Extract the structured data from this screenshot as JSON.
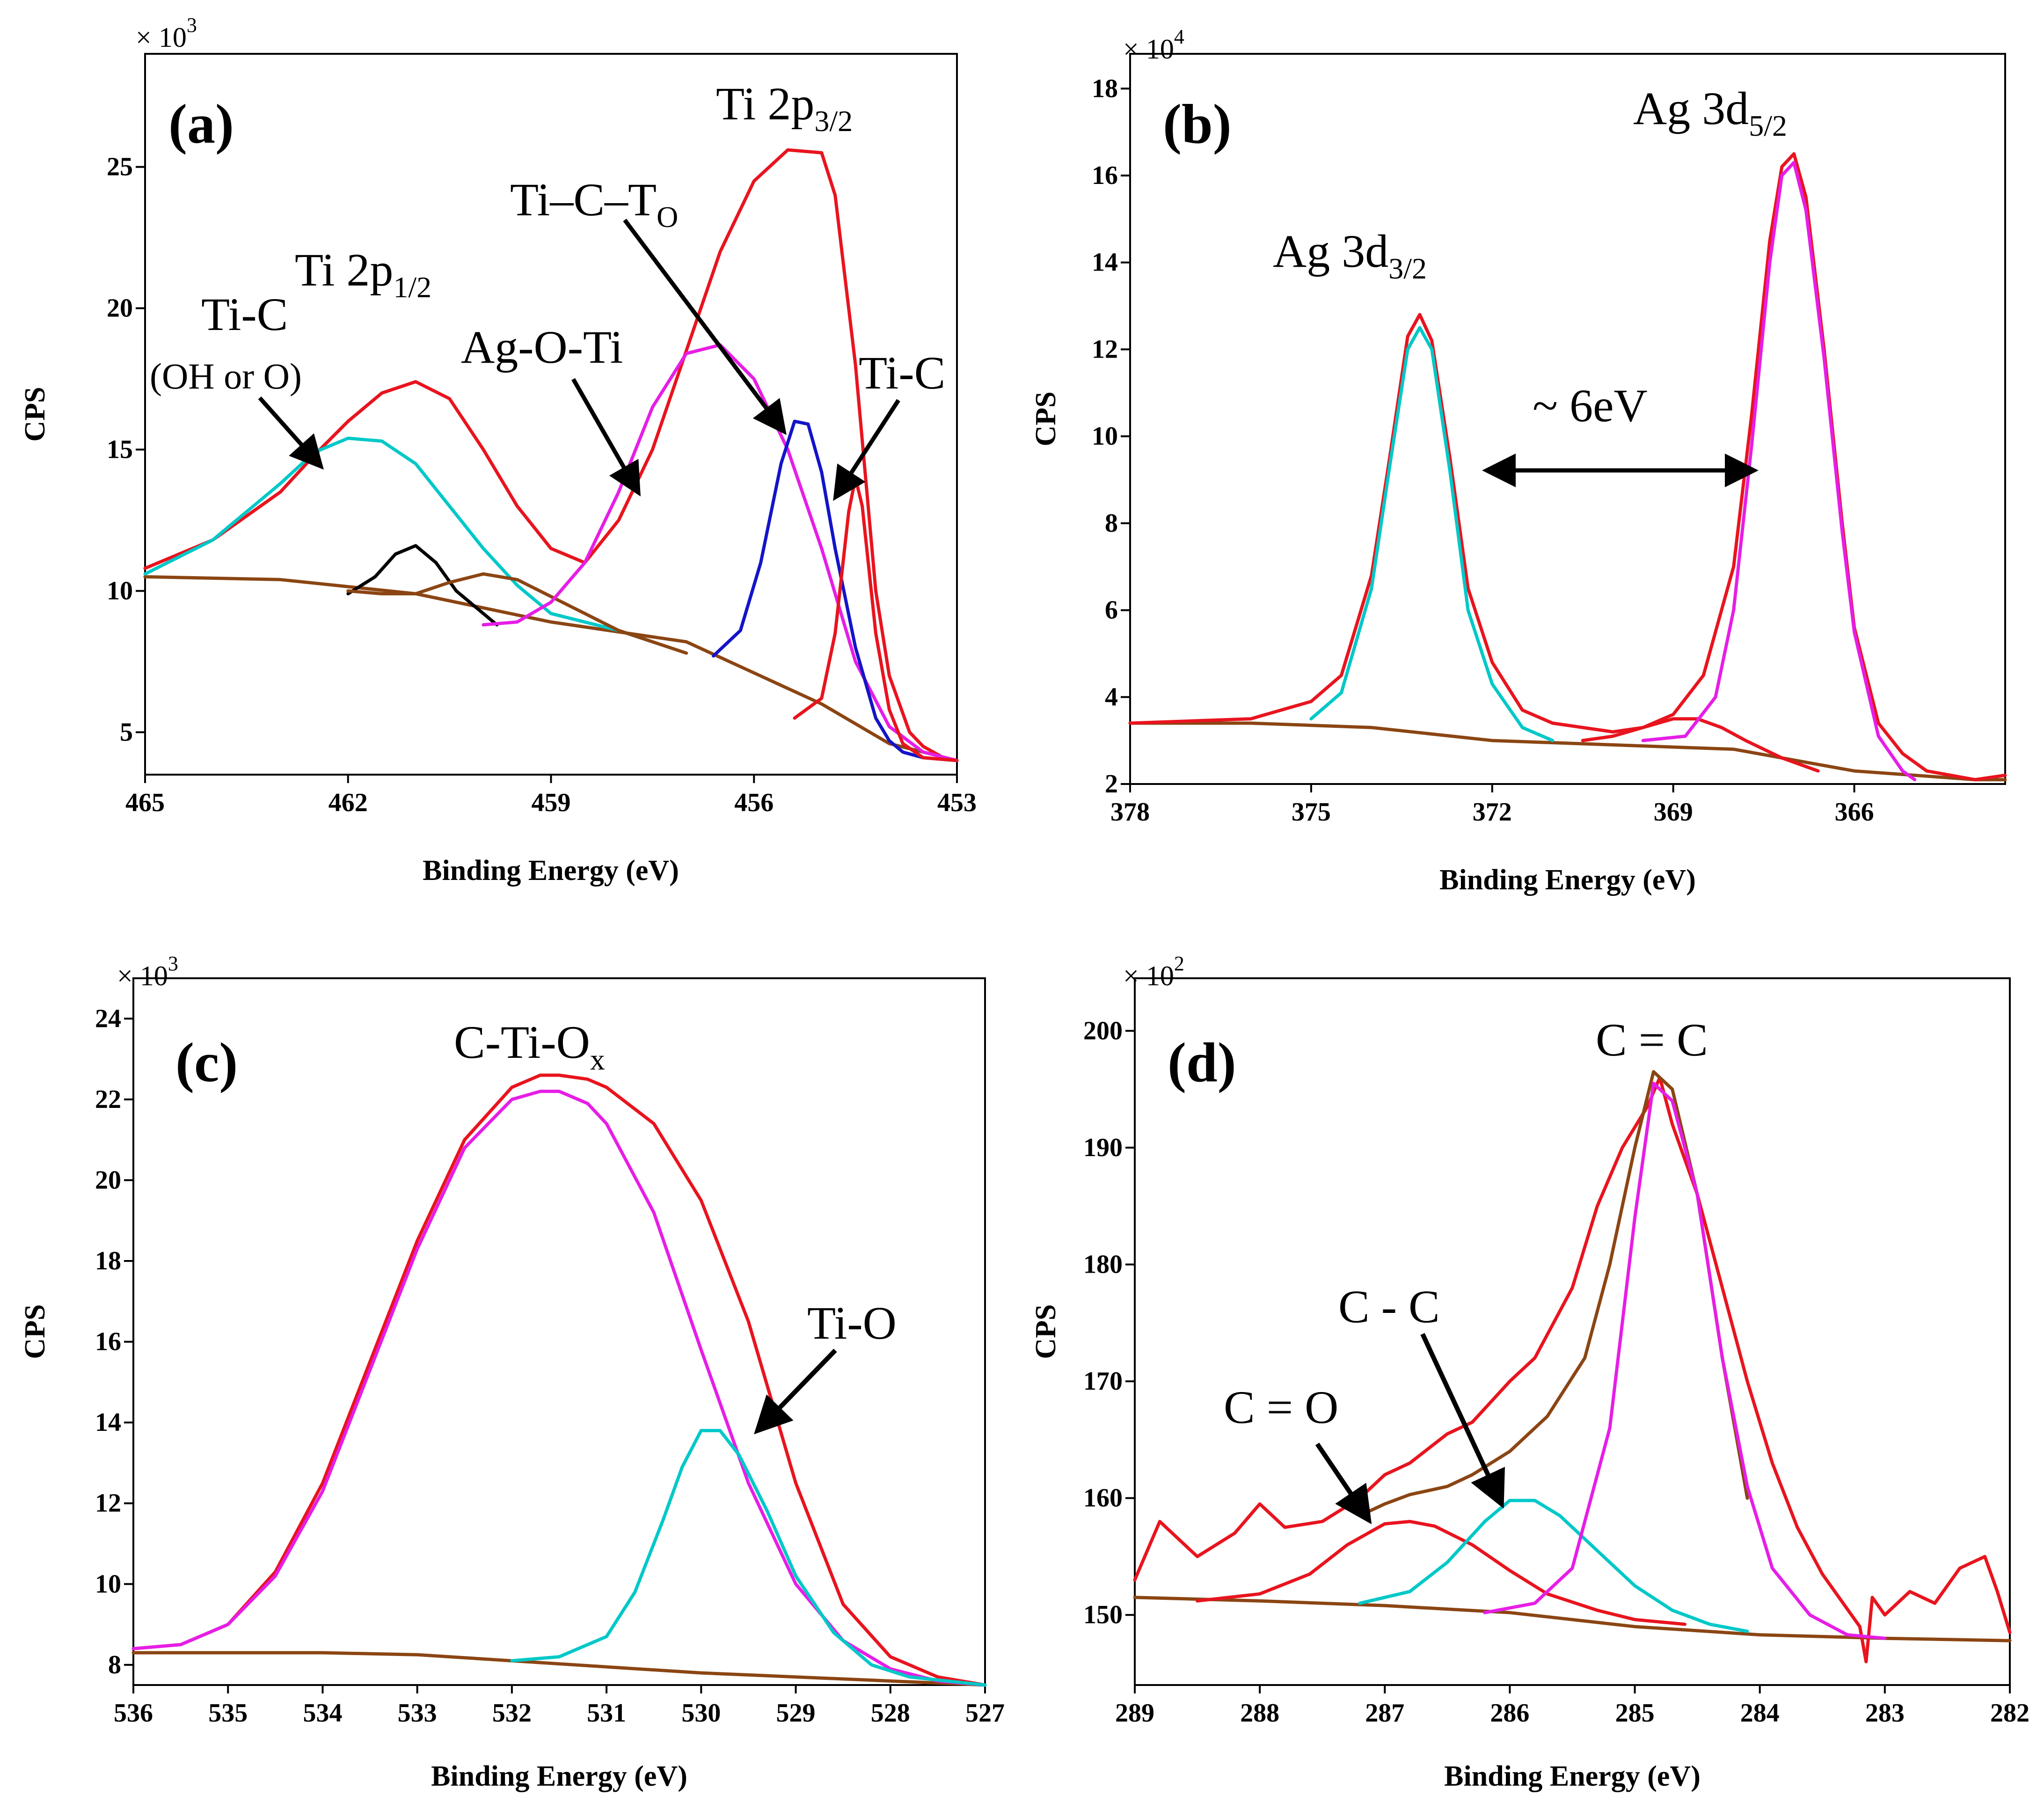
{
  "chart_data": [
    {
      "type": "line",
      "panel_label": "(a)",
      "xlabel": "Binding Energy (eV)",
      "ylabel": "CPS",
      "multiplier": "× 10",
      "multiplier_exp": "3",
      "xlim": [
        465,
        453
      ],
      "ylim": [
        3.5,
        29
      ],
      "x_ticks": [
        465,
        462,
        459,
        456,
        453
      ],
      "y_ticks": [
        5,
        10,
        15,
        20,
        25
      ],
      "annotations": [
        {
          "text": "Ti 2p",
          "sub": "3/2"
        },
        {
          "text": "Ti–C–T",
          "sub": "O"
        },
        {
          "text": "Ti-C"
        },
        {
          "text": "Ag-O-Ti"
        },
        {
          "text": "Ti 2p",
          "sub": "1/2"
        },
        {
          "text": "Ti-C"
        },
        {
          "text": "(OH or O)"
        }
      ],
      "background": {
        "color": "#8b4513",
        "x": [
          465,
          463,
          461,
          459,
          457,
          455,
          454,
          453
        ],
        "y": [
          10.5,
          10.4,
          9.9,
          8.9,
          8.2,
          6.0,
          4.6,
          4.0
        ]
      },
      "series": [
        {
          "color": "#e8141e",
          "x": [
            465,
            464,
            463,
            462.5,
            462,
            461.5,
            461,
            460.5,
            460,
            459.5,
            459,
            458.5,
            458,
            457.5,
            457,
            456.5,
            456,
            455.5,
            455,
            454.8,
            454.5,
            454.2,
            454,
            453.7,
            453.5,
            453.2,
            453
          ],
          "y": [
            10.8,
            11.8,
            13.5,
            14.8,
            16.0,
            17.0,
            17.4,
            16.8,
            15.0,
            13.0,
            11.5,
            11.0,
            12.5,
            15.0,
            18.5,
            22.0,
            24.5,
            25.6,
            25.5,
            24.0,
            18.0,
            10.0,
            7.0,
            5.0,
            4.5,
            4.1,
            4.0
          ]
        },
        {
          "color": "#00c8c8",
          "x": [
            465,
            464,
            463,
            462.5,
            462,
            461.5,
            461,
            460.5,
            460,
            459.5,
            459,
            458,
            457.5
          ],
          "y": [
            10.6,
            11.8,
            13.8,
            14.9,
            15.4,
            15.3,
            14.5,
            13.0,
            11.5,
            10.2,
            9.2,
            8.6,
            8.2
          ]
        },
        {
          "color": "#000000",
          "x": [
            462,
            461.6,
            461.3,
            461,
            460.7,
            460.4,
            460,
            459.8
          ],
          "y": [
            9.9,
            10.5,
            11.3,
            11.6,
            11.0,
            10.0,
            9.2,
            8.8
          ]
        },
        {
          "color": "#8b4513",
          "x": [
            462,
            461.5,
            461,
            460.5,
            460,
            459.5,
            459,
            458.5,
            458,
            457.5,
            457
          ],
          "y": [
            10.0,
            9.9,
            9.9,
            10.3,
            10.6,
            10.4,
            9.8,
            9.2,
            8.6,
            8.2,
            7.8
          ]
        },
        {
          "color": "#e61ee6",
          "x": [
            460,
            459.5,
            459,
            458.5,
            458,
            457.5,
            457,
            456.5,
            456,
            455.5,
            455,
            454.5,
            454,
            453.5,
            453
          ],
          "y": [
            8.8,
            8.9,
            9.6,
            11.0,
            13.5,
            16.5,
            18.4,
            18.7,
            17.5,
            15.0,
            11.5,
            7.5,
            5.2,
            4.3,
            4.0
          ]
        },
        {
          "color": "#1414c8",
          "x": [
            456.6,
            456.2,
            455.9,
            455.6,
            455.4,
            455.2,
            455.0,
            454.8,
            454.5,
            454.2,
            454.0,
            453.8,
            453.5,
            453
          ],
          "y": [
            7.7,
            8.6,
            11.0,
            14.5,
            16.0,
            15.9,
            14.2,
            11.5,
            8.0,
            5.5,
            4.7,
            4.3,
            4.1,
            4.0
          ]
        },
        {
          "color": "#e8141e",
          "x": [
            455.4,
            455.0,
            454.8,
            454.6,
            454.5,
            454.4,
            454.2,
            454.0,
            453.8,
            453.5,
            453
          ],
          "y": [
            5.5,
            6.2,
            8.5,
            12.8,
            14.0,
            13.0,
            8.5,
            5.8,
            4.6,
            4.1,
            4.0
          ]
        }
      ]
    },
    {
      "type": "line",
      "panel_label": "(b)",
      "xlabel": "Binding Energy (eV)",
      "ylabel": "CPS",
      "multiplier": "× 10",
      "multiplier_exp": "4",
      "xlim": [
        378,
        363.5
      ],
      "ylim": [
        2,
        18.8
      ],
      "x_ticks": [
        378,
        375,
        372,
        369,
        366
      ],
      "y_ticks": [
        2,
        4,
        6,
        8,
        10,
        12,
        14,
        16,
        18
      ],
      "annotations": [
        {
          "text": "Ag 3d",
          "sub": "5/2"
        },
        {
          "text": "Ag 3d",
          "sub": "3/2"
        },
        {
          "text": "~ 6eV"
        }
      ],
      "background": {
        "color": "#8b4513",
        "x": [
          378,
          376,
          374,
          372,
          370,
          368,
          366,
          364,
          363.5
        ],
        "y": [
          3.4,
          3.4,
          3.3,
          3.0,
          2.9,
          2.8,
          2.3,
          2.1,
          2.1
        ]
      },
      "series": [
        {
          "color": "#e8141e",
          "x": [
            378,
            376,
            375,
            374.5,
            374,
            373.7,
            373.4,
            373.2,
            373.0,
            372.7,
            372.4,
            372.0,
            371.5,
            371,
            370,
            369.5,
            369,
            368.5,
            368,
            367.7,
            367.4,
            367.2,
            367.0,
            366.8,
            366.5,
            366.2,
            366.0,
            365.6,
            365.2,
            364.8,
            364,
            363.5
          ],
          "y": [
            3.4,
            3.5,
            3.9,
            4.5,
            6.8,
            9.5,
            12.3,
            12.8,
            12.2,
            9.5,
            6.5,
            4.8,
            3.7,
            3.4,
            3.2,
            3.3,
            3.6,
            4.5,
            7.0,
            10.5,
            14.5,
            16.2,
            16.5,
            15.5,
            12.0,
            8.0,
            5.6,
            3.4,
            2.7,
            2.3,
            2.1,
            2.2
          ]
        },
        {
          "color": "#00c8c8",
          "x": [
            375,
            374.5,
            374,
            373.7,
            373.4,
            373.2,
            373.0,
            372.7,
            372.4,
            372.0,
            371.5,
            371
          ],
          "y": [
            3.5,
            4.1,
            6.5,
            9.3,
            12.0,
            12.5,
            12.0,
            9.2,
            6.0,
            4.3,
            3.3,
            3.0
          ]
        },
        {
          "color": "#e8141e",
          "x": [
            370.5,
            370,
            369.5,
            369.0,
            368.6,
            368.2,
            367.8,
            367.2,
            366.6
          ],
          "y": [
            3.0,
            3.1,
            3.3,
            3.5,
            3.5,
            3.3,
            3.0,
            2.6,
            2.3
          ]
        },
        {
          "color": "#e61ee6",
          "x": [
            369.5,
            368.8,
            368.3,
            368,
            367.7,
            367.4,
            367.2,
            367.0,
            366.8,
            366.5,
            366.2,
            366.0,
            365.6,
            365.2,
            365.0
          ],
          "y": [
            3.0,
            3.1,
            4.0,
            6.0,
            9.8,
            14.0,
            16.0,
            16.3,
            15.2,
            11.8,
            7.8,
            5.5,
            3.1,
            2.3,
            2.1
          ]
        }
      ]
    },
    {
      "type": "line",
      "panel_label": "(c)",
      "xlabel": "Binding Energy (eV)",
      "ylabel": "CPS",
      "multiplier": "× 10",
      "multiplier_exp": "3",
      "xlim": [
        536,
        527
      ],
      "ylim": [
        7.5,
        25
      ],
      "x_ticks": [
        536,
        535,
        534,
        533,
        532,
        531,
        530,
        529,
        528,
        527
      ],
      "y_ticks": [
        8,
        10,
        12,
        14,
        16,
        18,
        20,
        22,
        24
      ],
      "annotations": [
        {
          "text": "C-Ti-O",
          "sub": "x"
        },
        {
          "text": "Ti-O"
        }
      ],
      "background": {
        "color": "#8b4513",
        "x": [
          536,
          535,
          534,
          533,
          532,
          531,
          530,
          529,
          528,
          527
        ],
        "y": [
          8.3,
          8.3,
          8.3,
          8.25,
          8.1,
          7.95,
          7.8,
          7.7,
          7.6,
          7.5
        ]
      },
      "series": [
        {
          "color": "#e8141e",
          "x": [
            536,
            535.5,
            535,
            534.5,
            534,
            533.5,
            533,
            532.5,
            532,
            531.7,
            531.5,
            531.2,
            531,
            530.5,
            530,
            529.5,
            529,
            528.5,
            528,
            527.5,
            527
          ],
          "y": [
            8.4,
            8.5,
            9.0,
            10.3,
            12.5,
            15.5,
            18.5,
            21.0,
            22.3,
            22.6,
            22.6,
            22.5,
            22.3,
            21.4,
            19.5,
            16.5,
            12.5,
            9.5,
            8.2,
            7.7,
            7.5
          ]
        },
        {
          "color": "#e61ee6",
          "x": [
            536,
            535.5,
            535,
            534.5,
            534,
            533.5,
            533,
            532.5,
            532,
            531.7,
            531.5,
            531.2,
            531,
            530.5,
            530,
            529.5,
            529,
            528.5,
            528,
            527.5,
            527
          ],
          "y": [
            8.4,
            8.5,
            9.0,
            10.2,
            12.3,
            15.3,
            18.3,
            20.8,
            22.0,
            22.2,
            22.2,
            21.9,
            21.4,
            19.2,
            15.8,
            12.5,
            10.0,
            8.6,
            7.9,
            7.6,
            7.5
          ]
        },
        {
          "color": "#00c8c8",
          "x": [
            532,
            531.5,
            531,
            530.7,
            530.4,
            530.2,
            530,
            529.8,
            529.6,
            529.3,
            529,
            528.6,
            528.2,
            527.8,
            527.4,
            527
          ],
          "y": [
            8.1,
            8.2,
            8.7,
            9.8,
            11.6,
            12.9,
            13.8,
            13.8,
            13.2,
            11.8,
            10.2,
            8.8,
            8.0,
            7.7,
            7.6,
            7.5
          ]
        }
      ]
    },
    {
      "type": "line",
      "panel_label": "(d)",
      "xlabel": "Binding Energy (eV)",
      "ylabel": "CPS",
      "multiplier": "× 10",
      "multiplier_exp": "2",
      "xlim": [
        289,
        282
      ],
      "ylim": [
        144,
        204.5
      ],
      "x_ticks": [
        289,
        288,
        287,
        286,
        285,
        284,
        283,
        282
      ],
      "y_ticks": [
        150,
        160,
        170,
        180,
        190,
        200
      ],
      "annotations": [
        {
          "text": "C = C"
        },
        {
          "text": "C - C"
        },
        {
          "text": "C = O"
        }
      ],
      "background": {
        "color": "#8b4513",
        "x": [
          289,
          288,
          287,
          286,
          285,
          284,
          283,
          282
        ],
        "y": [
          151.5,
          151.2,
          150.8,
          150.2,
          149.0,
          148.3,
          148.0,
          147.8
        ]
      },
      "series": [
        {
          "color": "#e8141e",
          "x": [
            289,
            288.8,
            288.5,
            288.2,
            288,
            287.8,
            287.5,
            287.2,
            287,
            286.8,
            286.5,
            286.3,
            286,
            285.8,
            285.5,
            285.3,
            285.1,
            284.9,
            284.8,
            284.7,
            284.5,
            284.3,
            284.1,
            283.9,
            283.7,
            283.5,
            283.3,
            283.2,
            283.15,
            283.1,
            283.0,
            282.8,
            282.6,
            282.4,
            282.2,
            282.1,
            282
          ],
          "y": [
            153.0,
            158.0,
            155.0,
            157.0,
            159.5,
            157.5,
            158.0,
            160.0,
            162.0,
            163.0,
            165.5,
            166.5,
            170.0,
            172.0,
            178.0,
            185.0,
            190.0,
            193.5,
            196.0,
            192.0,
            186.0,
            178.0,
            170.0,
            163.0,
            157.5,
            153.5,
            150.5,
            149.0,
            146.0,
            151.5,
            150.0,
            152.0,
            151.0,
            154.0,
            155.0,
            152.0,
            148.5
          ]
        },
        {
          "color": "#8b4513",
          "x": [
            287.2,
            287,
            286.8,
            286.5,
            286.3,
            286.0,
            285.7,
            285.4,
            285.2,
            285.0,
            284.85,
            284.7,
            284.5,
            284.3,
            284.1
          ],
          "y": [
            158.5,
            159.5,
            160.3,
            161.0,
            162.0,
            164.0,
            167.0,
            172.0,
            180.0,
            190.0,
            196.5,
            195.0,
            186.0,
            172.0,
            160.0
          ]
        },
        {
          "color": "#e8141e",
          "x": [
            288.5,
            288,
            287.6,
            287.3,
            287.0,
            286.8,
            286.6,
            286.3,
            286.0,
            285.7,
            285.3,
            285.0,
            284.6
          ],
          "y": [
            151.2,
            151.8,
            153.5,
            156.0,
            157.8,
            158.0,
            157.6,
            156.0,
            153.8,
            151.8,
            150.4,
            149.6,
            149.2
          ]
        },
        {
          "color": "#00c8c8",
          "x": [
            287.2,
            286.8,
            286.5,
            286.2,
            286.0,
            285.8,
            285.6,
            285.3,
            285.0,
            284.7,
            284.4,
            284.1
          ],
          "y": [
            151.0,
            152.0,
            154.5,
            158.0,
            159.8,
            159.8,
            158.5,
            155.5,
            152.5,
            150.4,
            149.2,
            148.6
          ]
        },
        {
          "color": "#e61ee6",
          "x": [
            286.2,
            285.8,
            285.5,
            285.2,
            285.0,
            284.85,
            284.7,
            284.5,
            284.3,
            284.1,
            283.9,
            283.6,
            283.3,
            283.0
          ],
          "y": [
            150.2,
            151.0,
            154.0,
            166.0,
            184.0,
            195.5,
            194.0,
            186.0,
            172.0,
            161.0,
            154.0,
            150.0,
            148.3,
            148.0
          ]
        }
      ]
    }
  ]
}
